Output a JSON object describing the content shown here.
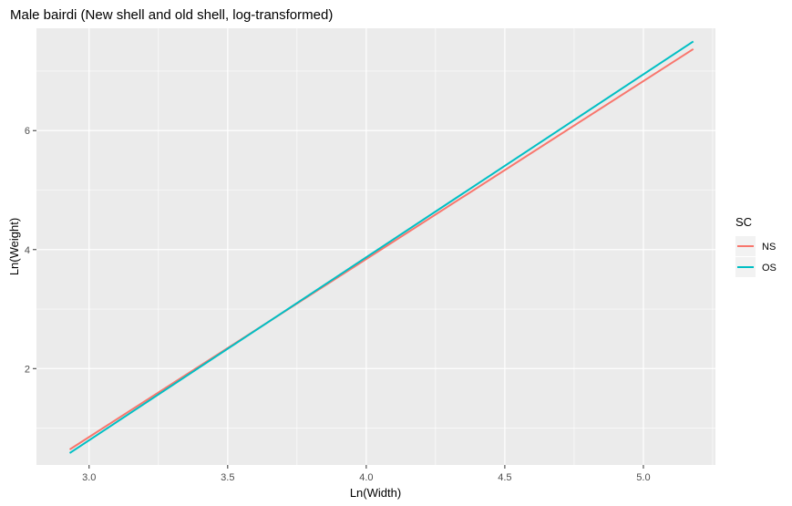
{
  "chart_data": {
    "type": "line",
    "title": "Male bairdi (New shell and old shell, log-transformed)",
    "xlabel": "Ln(Width)",
    "ylabel": "Ln(Weight)",
    "xlim": [
      2.81,
      5.26
    ],
    "ylim": [
      0.38,
      7.72
    ],
    "xticks": [
      3.0,
      3.5,
      4.0,
      4.5,
      5.0
    ],
    "xtick_labels": [
      "3.0",
      "3.5",
      "4.0",
      "4.5",
      "5.0"
    ],
    "yticks": [
      2,
      4,
      6
    ],
    "ytick_labels": [
      "2",
      "4",
      "6"
    ],
    "grid": true,
    "legend": {
      "title": "SC",
      "position": "right"
    },
    "series": [
      {
        "name": "NS",
        "color": "#F8766D",
        "x": [
          2.93,
          5.18
        ],
        "y": [
          0.64,
          7.37
        ]
      },
      {
        "name": "OS",
        "color": "#00BFC4",
        "x": [
          2.93,
          5.18
        ],
        "y": [
          0.58,
          7.5
        ]
      }
    ]
  }
}
